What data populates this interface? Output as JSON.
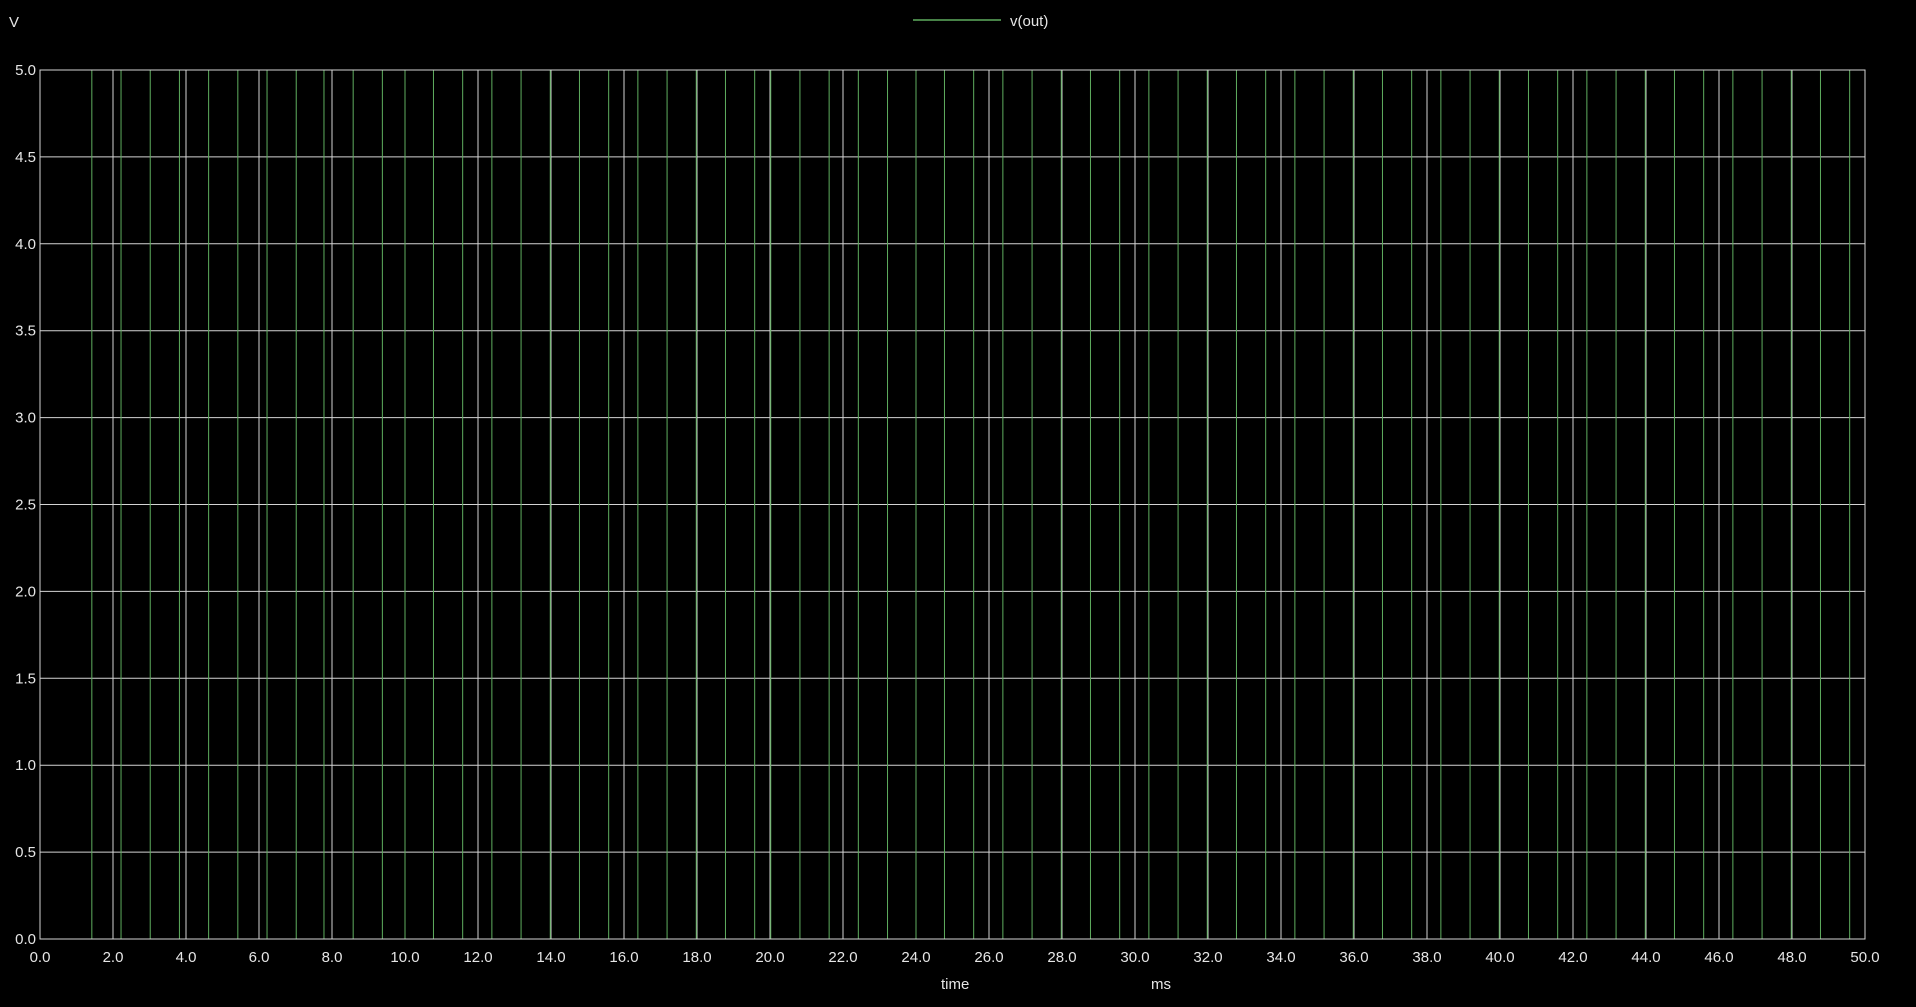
{
  "chart_data": {
    "type": "line",
    "y_unit_label": "V",
    "x_label": "time",
    "x_unit_label": "ms",
    "xlim": [
      0,
      50
    ],
    "ylim": [
      0,
      5
    ],
    "x_ticks": [
      "0.0",
      "2.0",
      "4.0",
      "6.0",
      "8.0",
      "10.0",
      "12.0",
      "14.0",
      "16.0",
      "18.0",
      "20.0",
      "22.0",
      "24.0",
      "26.0",
      "28.0",
      "30.0",
      "32.0",
      "34.0",
      "36.0",
      "38.0",
      "40.0",
      "42.0",
      "44.0",
      "46.0",
      "48.0",
      "50.0"
    ],
    "y_ticks": [
      "0.0",
      "0.5",
      "1.0",
      "1.5",
      "2.0",
      "2.5",
      "3.0",
      "3.5",
      "4.0",
      "4.5",
      "5.0"
    ],
    "grid": true,
    "legend": "top-center",
    "series": [
      {
        "name": "v(out)",
        "color": "#5fae5f",
        "levels": [
          0,
          5
        ],
        "transitions_ms": [
          1.42,
          2.22,
          3.02,
          3.82,
          4.62,
          5.42,
          6.22,
          7.02,
          7.78,
          8.58,
          9.38,
          10.0,
          10.78,
          11.58,
          12.38,
          13.18,
          13.98,
          14.78,
          15.58,
          16.38,
          17.18,
          17.98,
          18.78,
          19.58,
          20.02,
          20.82,
          21.62,
          22.42,
          23.22,
          24.0,
          24.78,
          25.58,
          26.38,
          27.18,
          27.98,
          28.78,
          29.58,
          30.38,
          31.18,
          31.98,
          32.78,
          33.58,
          34.38,
          35.18,
          35.98,
          36.78,
          37.58,
          38.38,
          39.18,
          39.98,
          40.78,
          41.58,
          42.38,
          43.18,
          43.98,
          44.78,
          45.58,
          46.38,
          47.18,
          47.98,
          48.78,
          49.58
        ]
      }
    ]
  }
}
